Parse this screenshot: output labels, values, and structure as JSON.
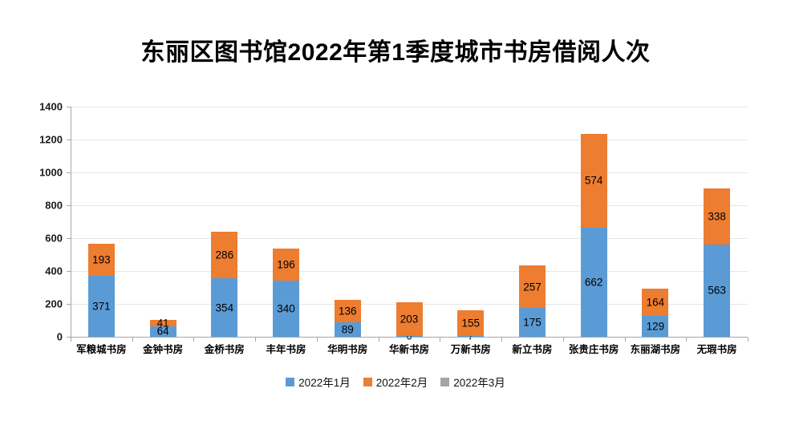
{
  "title": "东丽区图书馆2022年第1季度城市书房借阅人次",
  "chart_data": {
    "type": "bar",
    "stacked": true,
    "title": "东丽区图书馆2022年第1季度城市书房借阅人次",
    "categories": [
      "军粮城书房",
      "金钟书房",
      "金桥书房",
      "丰年书房",
      "华明书房",
      "华新书房",
      "万新书房",
      "新立书房",
      "张贵庄书房",
      "东丽湖书房",
      "无瑕书房"
    ],
    "series": [
      {
        "name": "2022年1月",
        "color": "#5B9BD5",
        "values": [
          371,
          64,
          354,
          340,
          89,
          6,
          7,
          175,
          662,
          129,
          563
        ]
      },
      {
        "name": "2022年2月",
        "color": "#ED7D31",
        "values": [
          193,
          41,
          286,
          196,
          136,
          203,
          155,
          257,
          574,
          164,
          338
        ]
      },
      {
        "name": "2022年3月",
        "color": "#A5A5A5",
        "values": [
          0,
          0,
          0,
          0,
          0,
          0,
          0,
          0,
          0,
          0,
          0
        ]
      }
    ],
    "xlabel": "",
    "ylabel": "",
    "ylim": [
      0,
      1400
    ],
    "y_ticks": [
      0,
      200,
      400,
      600,
      800,
      1000,
      1200,
      1400
    ],
    "grid": true,
    "legend_position": "bottom",
    "data_labels": true,
    "data_labels_note": "labels shown only for non-zero segments"
  },
  "colors": {
    "axis": "#a6a6a6",
    "gridline": "#e6e6e6",
    "label_text": "#000000",
    "background": "#ffffff"
  }
}
